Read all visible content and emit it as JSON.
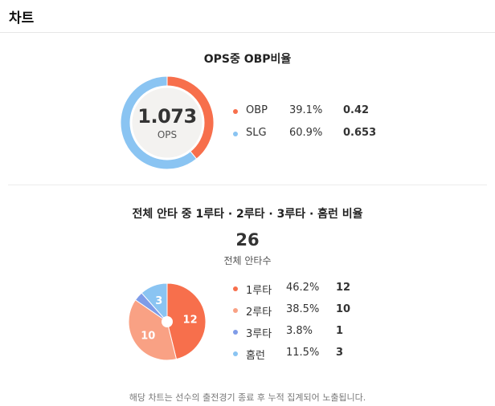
{
  "header": {
    "title": "차트"
  },
  "ops_section": {
    "title": "OPS중 OBP비율",
    "center_value": "1.073",
    "center_label": "OPS",
    "legend": [
      {
        "name": "OBP",
        "percent": "39.1%",
        "value": "0.42",
        "color": "#f76f4c"
      },
      {
        "name": "SLG",
        "percent": "60.9%",
        "value": "0.653",
        "color": "#8ac4f2"
      }
    ]
  },
  "hits_section": {
    "title": "전체 안타 중 1루타 · 2루타 · 3루타 · 홈런 비율",
    "total_value": "26",
    "total_label": "전체 안타수",
    "legend": [
      {
        "name": "1루타",
        "percent": "46.2%",
        "value": "12",
        "color": "#f76f4c"
      },
      {
        "name": "2루타",
        "percent": "38.5%",
        "value": "10",
        "color": "#f9a184"
      },
      {
        "name": "3루타",
        "percent": "3.8%",
        "value": "1",
        "color": "#7f9ce8"
      },
      {
        "name": "홈런",
        "percent": "11.5%",
        "value": "3",
        "color": "#8ac4f2"
      }
    ]
  },
  "chart_data": [
    {
      "type": "pie",
      "title": "OPS중 OBP비율",
      "categories": [
        "OBP",
        "SLG"
      ],
      "values": [
        0.42,
        0.653
      ],
      "percentages": [
        39.1,
        60.9
      ],
      "colors": [
        "#f76f4c",
        "#8ac4f2"
      ],
      "legend": "right"
    },
    {
      "type": "pie",
      "title": "전체 안타 중 1루타 · 2루타 · 3루타 · 홈런 비율",
      "categories": [
        "1루타",
        "2루타",
        "3루타",
        "홈런"
      ],
      "values": [
        12,
        10,
        1,
        3
      ],
      "percentages": [
        46.2,
        38.5,
        3.8,
        11.5
      ],
      "data_labels": [
        "12",
        "10",
        "",
        "3"
      ],
      "colors": [
        "#f76f4c",
        "#f9a184",
        "#7f9ce8",
        "#8ac4f2"
      ],
      "legend": "right"
    }
  ],
  "footer": {
    "note": "해당 차트는 선수의 출전경기 종료 후 누적 집계되어 노출됩니다."
  }
}
